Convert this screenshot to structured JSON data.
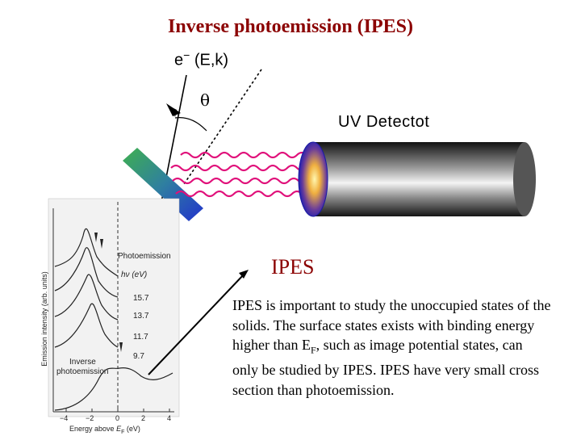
{
  "title": "Inverse photoemission (IPES)",
  "electron_label": {
    "symbol": "e",
    "superscript": "−",
    "state": "(E,k)"
  },
  "angle_symbol": "θ",
  "detector_label": "UV Detectot",
  "section_heading": "IPES",
  "body": {
    "part1": "IPES is important to study the unoccupied states of the solids. The surface states exists with binding energy higher than E",
    "subscript": "F",
    "part2": ", such as image potential states, can only be studied by IPES. IPES have very small cross section than photoemission."
  },
  "inset_plot": {
    "ylabel": "Emission intensity (arb. units)",
    "xlabel": "Energy above Eₓ (eV)",
    "xlabel_text": "Energy above",
    "xlabel_sym": "E",
    "xlabel_sub": "F",
    "xlabel_unit": "(eV)",
    "xticks": [
      "−4",
      "−2",
      "0",
      "2",
      "4"
    ],
    "photoemission_label": "Photoemission",
    "hv_label": "hν (eV)",
    "hv_values": [
      "15.7",
      "13.7",
      "11.7",
      "9.7"
    ],
    "inverse_label_1": "Inverse",
    "inverse_label_2": "photoemission"
  },
  "colors": {
    "title": "#8b0000",
    "wavy": "#e0107a",
    "crystal_top": "#3aa35a",
    "crystal_bottom": "#2a3fd0"
  }
}
